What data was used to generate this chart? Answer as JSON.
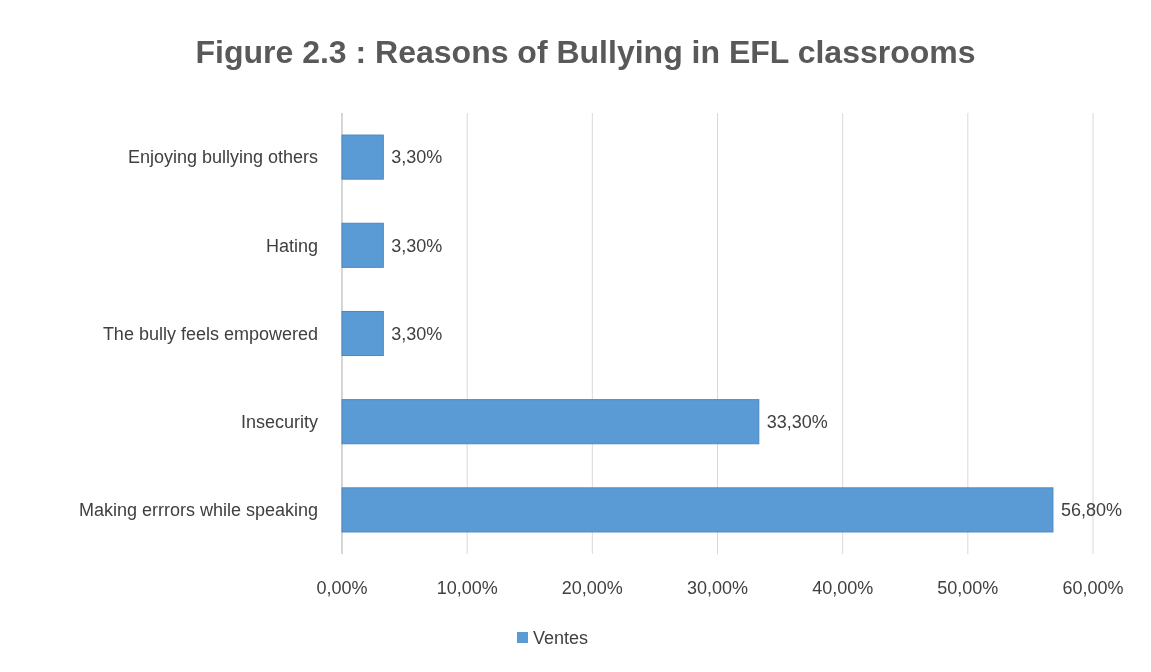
{
  "chart_data": {
    "type": "bar",
    "orientation": "horizontal",
    "title": "Figure 2.3 : Reasons of Bullying in EFL classrooms",
    "categories": [
      "Enjoying bullying others",
      "Hating",
      "The bully feels empowered",
      "Insecurity",
      "Making errrors while speaking"
    ],
    "series": [
      {
        "name": "Ventes",
        "color": "#5b9bd5",
        "values": [
          3.3,
          3.3,
          3.3,
          33.3,
          56.8
        ],
        "value_labels": [
          "3,30%",
          "3,30%",
          "3,30%",
          "33,30%",
          "56,80%"
        ]
      }
    ],
    "xlim": [
      0,
      60
    ],
    "xticks": [
      {
        "value": 0,
        "label": "0,00%"
      },
      {
        "value": 10,
        "label": "10,00%"
      },
      {
        "value": 20,
        "label": "20,00%"
      },
      {
        "value": 30,
        "label": "30,00%"
      },
      {
        "value": 40,
        "label": "40,00%"
      },
      {
        "value": 50,
        "label": "50,00%"
      },
      {
        "value": 60,
        "label": "60,00%"
      }
    ],
    "grid": "x",
    "legend": "bottom"
  }
}
